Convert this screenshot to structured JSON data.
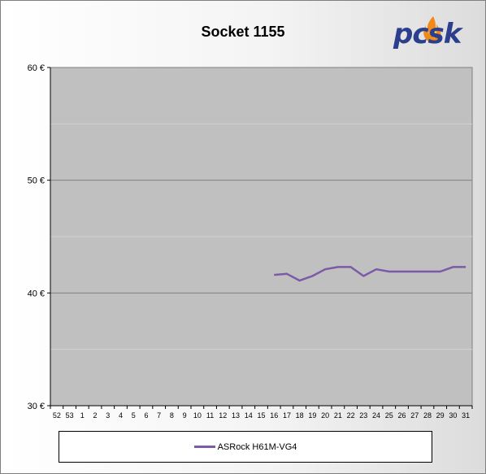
{
  "logo_text": "pcsk",
  "chart_data": {
    "type": "line",
    "title": "Socket 1155",
    "xlabel": "",
    "ylabel": "",
    "categories": [
      "52",
      "53",
      "1",
      "2",
      "3",
      "4",
      "5",
      "6",
      "7",
      "8",
      "9",
      "10",
      "11",
      "12",
      "13",
      "14",
      "15",
      "16",
      "17",
      "18",
      "19",
      "20",
      "21",
      "22",
      "23",
      "24",
      "25",
      "26",
      "27",
      "28",
      "29",
      "30",
      "31"
    ],
    "y_ticks": [
      {
        "value": 30,
        "label": "30 €"
      },
      {
        "value": 40,
        "label": "40 €"
      },
      {
        "value": 50,
        "label": "50 €"
      },
      {
        "value": 60,
        "label": "60 €"
      }
    ],
    "ylim": [
      30,
      60
    ],
    "grid": true,
    "legend_position": "bottom",
    "series": [
      {
        "name": "ASRock H61M-VG4",
        "color": "#7b5aa6",
        "values": [
          null,
          null,
          null,
          null,
          null,
          null,
          null,
          null,
          null,
          null,
          null,
          null,
          null,
          null,
          null,
          null,
          null,
          41.6,
          41.7,
          41.1,
          41.5,
          42.1,
          42.3,
          42.3,
          41.5,
          42.1,
          41.9,
          41.9,
          41.9,
          41.9,
          41.9,
          42.3,
          42.3
        ]
      }
    ]
  }
}
